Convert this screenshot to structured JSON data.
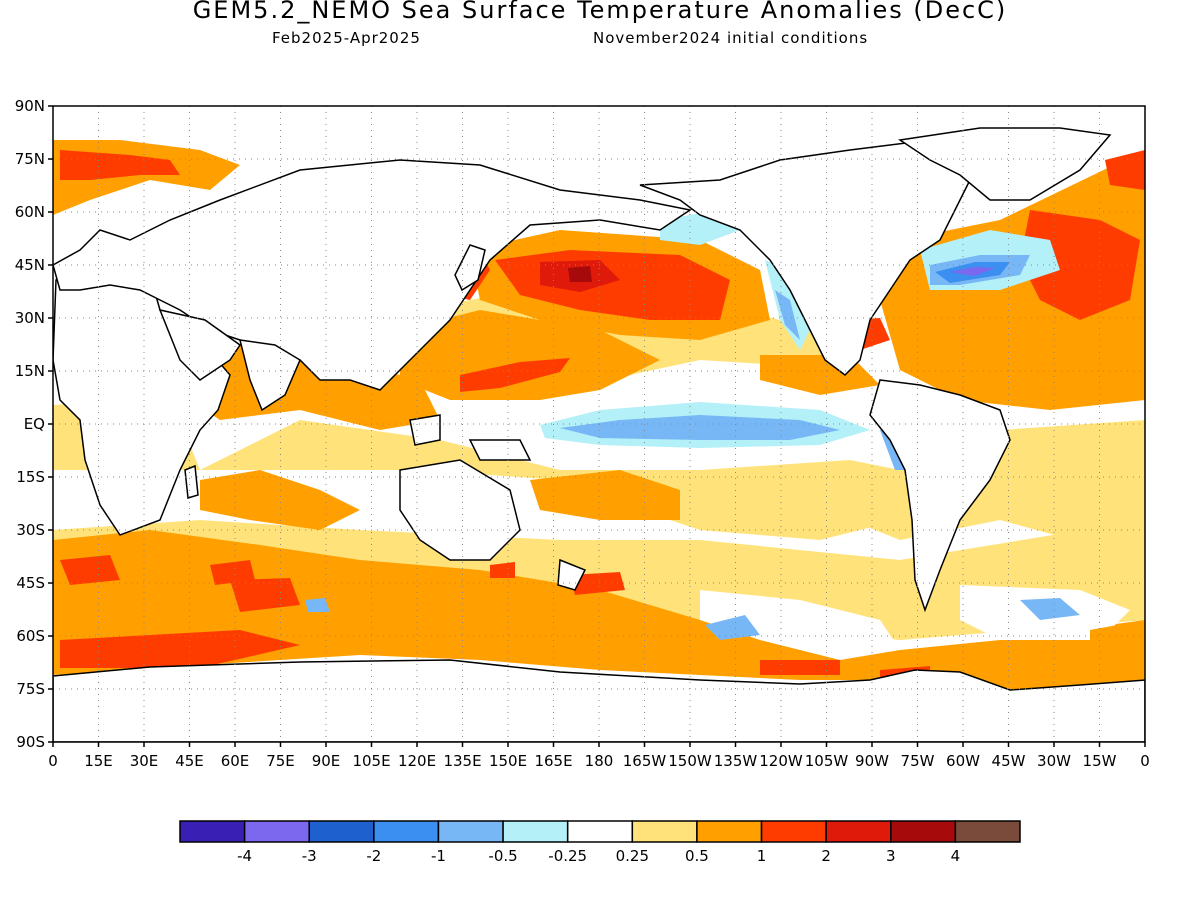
{
  "title": "GEM5.2_NEMO Sea Surface Temperature Anomalies (DecC)",
  "subtitle_left": "Feb2025-Apr2025",
  "subtitle_right": "November2024 initial conditions",
  "lat_labels": [
    "90N",
    "75N",
    "60N",
    "45N",
    "30N",
    "15N",
    "EQ",
    "15S",
    "30S",
    "45S",
    "60S",
    "75S",
    "90S"
  ],
  "lon_labels": [
    "0",
    "15E",
    "30E",
    "45E",
    "60E",
    "75E",
    "90E",
    "105E",
    "120E",
    "135E",
    "150E",
    "165E",
    "180",
    "165W",
    "150W",
    "135W",
    "120W",
    "105W",
    "90W",
    "75W",
    "60W",
    "45W",
    "30W",
    "15W",
    "0"
  ],
  "colorbar": {
    "colors": [
      "#3a1fb5",
      "#7b68ee",
      "#1f60cf",
      "#3b8ff0",
      "#78b7f5",
      "#b3f0f8",
      "#ffffff",
      "#ffe37a",
      "#ffa000",
      "#ff3c00",
      "#e01a0a",
      "#a60a0a",
      "#7a4a3a"
    ],
    "labels": [
      "-4",
      "-3",
      "-2",
      "-1",
      "-0.5",
      "-0.25",
      "0.25",
      "0.5",
      "1",
      "2",
      "3",
      "4"
    ]
  }
}
